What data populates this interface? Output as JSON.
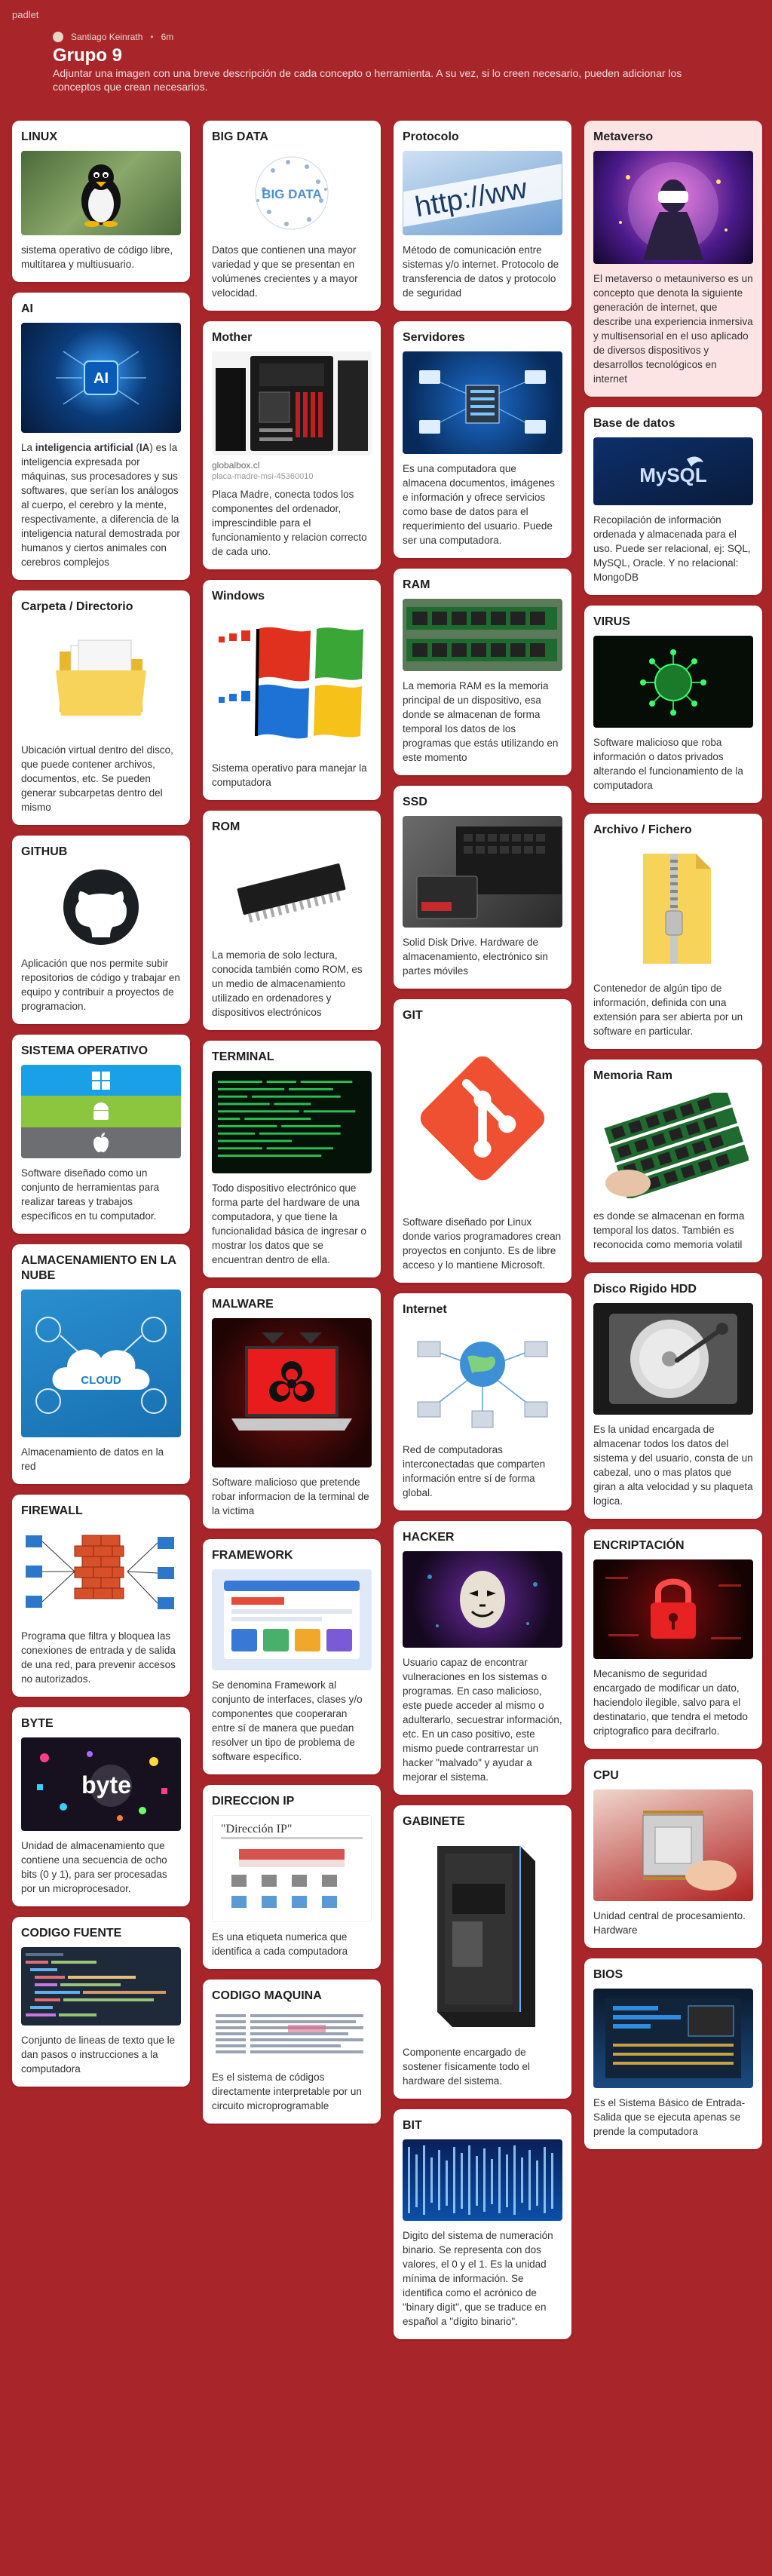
{
  "app": {
    "brand": "padlet"
  },
  "header": {
    "author": "Santiago Keinrath",
    "time": "6m",
    "title": "Grupo 9",
    "description": "Adjuntar una imagen con una breve descripción de cada concepto o herramienta. A su vez, si lo creen necesario, pueden adicionar los conceptos que crean necesarios."
  },
  "colors": {
    "background": "#a8262a",
    "card": "#ffffff",
    "card_highlight": "#fde4e4"
  },
  "cards": {
    "linux": {
      "title": "LINUX",
      "text": "sistema operativo de código libre, multitarea y multiusuario."
    },
    "ai": {
      "title": "AI",
      "text_bold1": "inteligencia artificial",
      "text_bold2": "IA",
      "text_pre": "La ",
      "text_mid1": " (",
      "text_mid2": ") es ",
      "text_rest": "la inteligencia expresada por máquinas, sus procesadores y sus softwares, que serían los análogos al cuerpo, el cerebro y la mente, respectivamente, a diferencia de la inteligencia natural demostrada por humanos y ciertos animales con cerebros complejos"
    },
    "carpeta": {
      "title": "Carpeta / Directorio",
      "text": "Ubicación virtual dentro del disco, que puede contener archivos, documentos, etc. Se pueden generar subcarpetas dentro del mismo"
    },
    "github": {
      "title": "GITHUB",
      "text": "Aplicación que nos permite subir repositorios de código y trabajar en equipo y contribuir a proyectos de programacion."
    },
    "so": {
      "title": "SISTEMA OPERATIVO",
      "text": "Software diseñado como un conjunto de herramientas para realizar tareas y trabajos específicos en tu computador."
    },
    "nube": {
      "title": "ALMACENAMIENTO EN LA NUBE",
      "text": "Almacenamiento de datos en la red",
      "img_text": "CLOUD"
    },
    "firewall": {
      "title": "FIREWALL",
      "text": "Programa que filtra y bloquea las conexiones de entrada y de salida de una red, para prevenir accesos no autorizados."
    },
    "byte": {
      "title": "BYTE",
      "text": "Unidad de almacenamiento que contiene una secuencia de ocho bits (0 y 1), para ser procesadas por un microprocesador.",
      "img_text": "byte"
    },
    "codigo_fuente": {
      "title": "CODIGO FUENTE",
      "text": "Conjunto de lineas de texto que le dan pasos o instrucciones a la computadora"
    },
    "bigdata": {
      "title": "BIG DATA",
      "text": "Datos que contienen una mayor variedad y que se presentan en volúmenes crecientes y a mayor velocidad.",
      "img_text": "BIG DATA"
    },
    "mother": {
      "title": "Mother",
      "link": "globalbox.cl",
      "link_caption": "placa-madre-msi-45360010",
      "text": "Placa Madre, conecta todos los componentes del ordenador, imprescindible para el funcionamiento y relacion correcto de cada uno."
    },
    "windows": {
      "title": "Windows",
      "text": "Sistema operativo para manejar la computadora"
    },
    "rom": {
      "title": "ROM",
      "text": "La memoria de solo lectura, conocida también como ROM, es un medio de almacenamiento utilizado en ordenadores y dispositivos electrónicos"
    },
    "terminal": {
      "title": "TERMINAL",
      "text": "Todo dispositivo electrónico que forma parte del hardware de una computadora, y que tiene la funcionalidad básica de ingresar o mostrar los datos que se encuentran dentro de ella."
    },
    "malware": {
      "title": "MALWARE",
      "text": "Software malicioso que pretende robar informacion de la terminal de la victima"
    },
    "framework": {
      "title": "FRAMEWORK",
      "text": "Se denomina Framework al conjunto de interfaces, clases y/o componentes que cooperaran entre sí de manera que puedan resolver un tipo de problema de software específico."
    },
    "direccion_ip": {
      "title": "DIRECCION IP",
      "text": "Es una etiqueta numerica que identifica a cada computadora",
      "img_text": "\"Dirección IP\""
    },
    "codigo_maquina": {
      "title": "CODIGO MAQUINA",
      "text": "Es el sistema de códigos directamente interpretable por un circuito microprogramable"
    },
    "protocolo": {
      "title": "Protocolo",
      "text": "Método de comunicación entre sistemas y/o internet. Protocolo de transferencia de datos y protocolo de seguridad",
      "img_text": "http://ww"
    },
    "servidores": {
      "title": "Servidores",
      "text": "Es una computadora que almacena documentos, imágenes e información y ofrece servicios como base de datos para el requerimiento del usuario. Puede ser una computadora."
    },
    "ram": {
      "title": "RAM",
      "text": "La memoria RAM es la memoria principal de un dispositivo, esa donde se almacenan de forma temporal los datos de los programas que estás utilizando en este momento"
    },
    "ssd": {
      "title": "SSD",
      "text": "Solid Disk Drive. Hardware de almacenamiento, electrónico sin partes móviles"
    },
    "git": {
      "title": "GIT",
      "text": "Software diseñado por Linux donde varios programadores crean proyectos en conjunto. Es de libre acceso y lo mantiene Microsoft."
    },
    "internet": {
      "title": "Internet",
      "text": "Red de computadoras interconectadas que comparten información entre sí de forma global."
    },
    "hacker": {
      "title": "HACKER",
      "text": "Usuario capaz de encontrar vulneraciones en los sistemas o programas. En caso malicioso, este puede acceder al mismo o adulterarlo, secuestrar información, etc. En un caso positivo, este mismo puede contrarrestar un hacker \"malvado\" y ayudar a mejorar el sistema."
    },
    "gabinete": {
      "title": "GABINETE",
      "text": "Componente encargado de sostener físicamente todo el hardware del sistema."
    },
    "bit": {
      "title": "BIT",
      "text": "Digito del sistema de numeración binario. Se representa con dos valores, el 0 y el 1. Es la unidad mínima de información. Se identifica como el acrónico de \"binary digit\", que se traduce en español a \"dígito binario\"."
    },
    "metaverso": {
      "title": "Metaverso",
      "text": "El metaverso o metauniverso es un concepto que denota la siguiente generación de internet,  que describe una experiencia inmersiva y multisensorial en el uso aplicado de diversos dispositivos y desarrollos tecnológicos en internet"
    },
    "base_datos": {
      "title": "Base de datos",
      "text": "Recopilación de información ordenada y almacenada para el uso. Puede ser relacional, ej: SQL, MySQL, Oracle. Y no relacional: MongoDB",
      "img_text": "MySQL"
    },
    "virus": {
      "title": "VIRUS",
      "text": "Software malicioso que roba información o datos privados alterando el funcionamiento de la computadora"
    },
    "archivo": {
      "title": "Archivo / Fichero",
      "text": "Contenedor de algún tipo de información, definida con una extensión para ser abierta por un software en particular."
    },
    "memoria_ram": {
      "title": "Memoria Ram",
      "text": "es donde se almacenan en forma temporal los datos. También es reconocida como memoria volatil"
    },
    "hdd": {
      "title": "Disco Rigido HDD",
      "text": "Es la unidad encargada de almacenar todos los datos del sistema y del usuario, consta de un cabezal, uno o mas platos que giran a alta velocidad y su plaqueta logica."
    },
    "encriptacion": {
      "title": "ENCRIPTACIÓN",
      "text": "Mecanismo de seguridad encargado de modificar un dato, haciendolo ilegible, salvo para el destinatario, que tendra el metodo criptografico para decifrarlo."
    },
    "cpu": {
      "title": "CPU",
      "text": "Unidad central de procesamiento. Hardware"
    },
    "bios": {
      "title": "BIOS",
      "text": "Es el Sistema Básico de Entrada-Salida que se ejecuta apenas se prende la computadora"
    }
  }
}
